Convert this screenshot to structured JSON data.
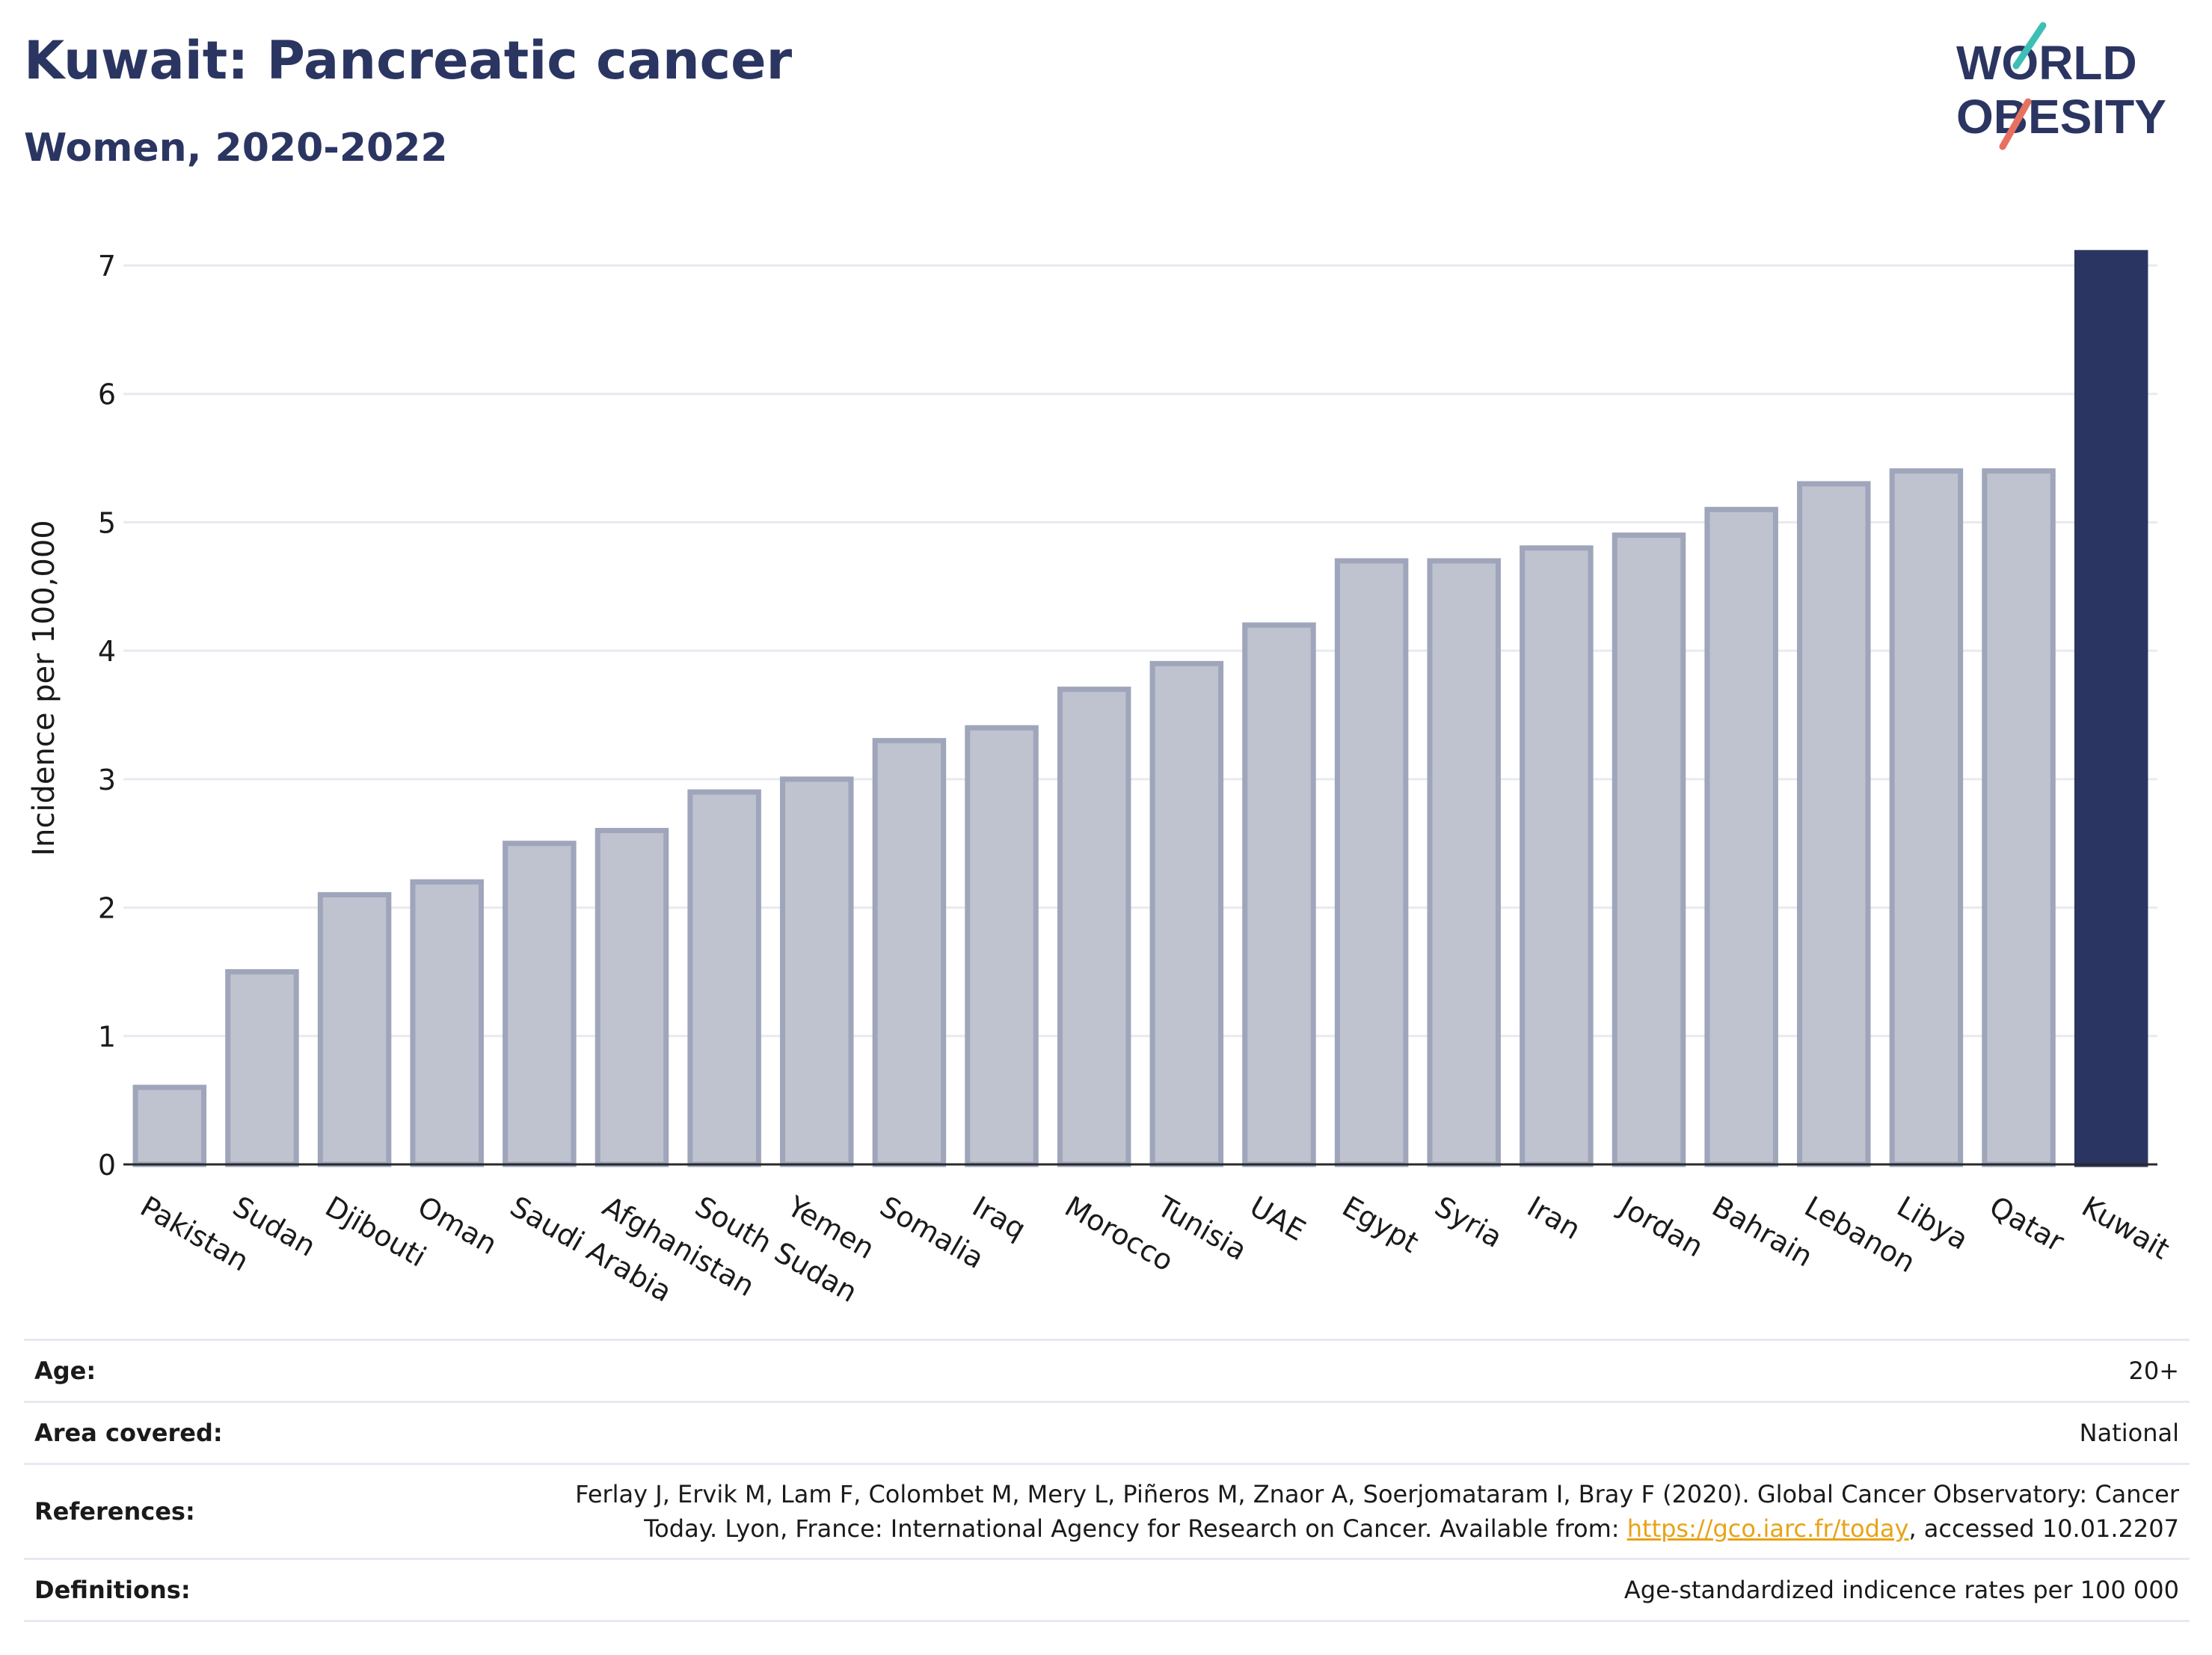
{
  "header": {
    "title": "Kuwait: Pancreatic cancer",
    "subtitle": "Women, 2020-2022"
  },
  "logo": {
    "line1": "WORLD",
    "line2": "OBESITY",
    "colors": {
      "text": "#2b3561",
      "slash_top": "#3dbfb5",
      "slash_bottom": "#e8705f"
    }
  },
  "chart_data": {
    "type": "bar",
    "categories": [
      "Pakistan",
      "Sudan",
      "Djibouti",
      "Oman",
      "Saudi Arabia",
      "Afghanistan",
      "South Sudan",
      "Yemen",
      "Somalia",
      "Iraq",
      "Morocco",
      "Tunisia",
      "UAE",
      "Egypt",
      "Syria",
      "Iran",
      "Jordan",
      "Bahrain",
      "Lebanon",
      "Libya",
      "Qatar",
      "Kuwait"
    ],
    "values": [
      0.6,
      1.5,
      2.1,
      2.2,
      2.5,
      2.6,
      2.9,
      3.0,
      3.3,
      3.4,
      3.7,
      3.9,
      4.2,
      4.7,
      4.7,
      4.8,
      4.9,
      5.1,
      5.3,
      5.4,
      5.4,
      7.1
    ],
    "highlight": "Kuwait",
    "ylabel": "Incidence per 100,000",
    "xlabel": "",
    "ylim": [
      0,
      7
    ],
    "yticks": [
      0,
      1,
      2,
      3,
      4,
      5,
      6,
      7
    ],
    "grid": true,
    "colors": {
      "bar_fill": "#bfc2cf",
      "bar_stroke": "#9fa5ba",
      "highlight": "#2b3561",
      "grid": "#e8eaf0"
    }
  },
  "meta": {
    "rows": [
      {
        "key": "Age:",
        "value": "20+"
      },
      {
        "key": "Area covered:",
        "value": "National"
      },
      {
        "key": "References:",
        "value_line1": "Ferlay J, Ervik M, Lam F, Colombet M, Mery L, Piñeros M, Znaor A, Soerjomataram I, Bray F (2020). Global Cancer Observatory: Cancer",
        "value_line2_pre": "Today. Lyon, France: International Agency for Research on Cancer. Available from: ",
        "link": "https://gco.iarc.fr/today",
        "value_line2_post": ", accessed 10.01.2207"
      },
      {
        "key": "Definitions:",
        "value": "Age-standardized indicence rates per 100 000"
      }
    ]
  }
}
